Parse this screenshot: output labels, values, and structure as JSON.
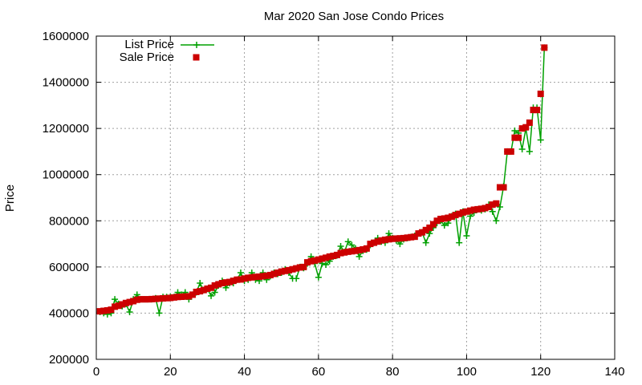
{
  "chart_data": {
    "type": "line",
    "title": "Mar 2020 San Jose Condo Prices",
    "xlabel": "",
    "ylabel": "Price",
    "xlim": [
      0,
      140
    ],
    "ylim": [
      200000,
      1600000
    ],
    "x_ticks": [
      "0",
      "20",
      "40",
      "60",
      "80",
      "100",
      "120",
      "140"
    ],
    "y_ticks": [
      "200000",
      "400000",
      "600000",
      "800000",
      "1000000",
      "1200000",
      "1400000",
      "1600000"
    ],
    "grid": true,
    "legend_position": "top-left",
    "colors": {
      "list": "#00a000",
      "sale": "#cc0000"
    },
    "x": [
      1,
      2,
      3,
      4,
      5,
      6,
      7,
      8,
      9,
      10,
      11,
      12,
      13,
      14,
      15,
      16,
      17,
      18,
      19,
      20,
      21,
      22,
      23,
      24,
      25,
      26,
      27,
      28,
      29,
      30,
      31,
      32,
      33,
      34,
      35,
      36,
      37,
      38,
      39,
      40,
      41,
      42,
      43,
      44,
      45,
      46,
      47,
      48,
      49,
      50,
      51,
      52,
      53,
      54,
      55,
      56,
      57,
      58,
      59,
      60,
      61,
      62,
      63,
      64,
      65,
      66,
      67,
      68,
      69,
      70,
      71,
      72,
      73,
      74,
      75,
      76,
      77,
      78,
      79,
      80,
      81,
      82,
      83,
      84,
      85,
      86,
      87,
      88,
      89,
      90,
      91,
      92,
      93,
      94,
      95,
      96,
      97,
      98,
      99,
      100,
      101,
      102,
      103,
      104,
      105,
      106,
      107,
      108,
      109,
      110,
      111,
      112,
      113,
      114,
      115,
      116,
      117,
      118,
      119,
      120,
      121
    ],
    "series": [
      {
        "name": "List Price",
        "style": "line-plus",
        "values": [
          405000,
          400000,
          395000,
          400000,
          460000,
          440000,
          430000,
          440000,
          405000,
          460000,
          480000,
          460000,
          460000,
          460000,
          460000,
          465000,
          400000,
          470000,
          470000,
          470000,
          470000,
          490000,
          480000,
          490000,
          460000,
          480000,
          490000,
          530000,
          500000,
          505000,
          475000,
          490000,
          520000,
          540000,
          510000,
          530000,
          530000,
          545000,
          575000,
          540000,
          545000,
          575000,
          545000,
          540000,
          575000,
          545000,
          560000,
          575000,
          570000,
          575000,
          590000,
          575000,
          550000,
          550000,
          600000,
          595000,
          615000,
          645000,
          615000,
          555000,
          615000,
          610000,
          625000,
          645000,
          650000,
          690000,
          665000,
          710000,
          695000,
          680000,
          645000,
          670000,
          675000,
          695000,
          705000,
          725000,
          710000,
          705000,
          745000,
          725000,
          715000,
          700000,
          720000,
          725000,
          730000,
          735000,
          745000,
          750000,
          705000,
          745000,
          770000,
          790000,
          800000,
          780000,
          790000,
          820000,
          830000,
          705000,
          840000,
          735000,
          820000,
          835000,
          850000,
          845000,
          850000,
          870000,
          840000,
          800000,
          860000,
          950000,
          1100000,
          1100000,
          1190000,
          1180000,
          1110000,
          1200000,
          1100000,
          1290000,
          1290000,
          1150000,
          1550000
        ]
      },
      {
        "name": "Sale Price",
        "style": "square",
        "values": [
          408000,
          410000,
          412000,
          415000,
          428000,
          432000,
          438000,
          444000,
          448000,
          452000,
          458000,
          460000,
          460000,
          460000,
          461000,
          462000,
          463000,
          464000,
          465000,
          466000,
          468000,
          470000,
          471000,
          472000,
          473000,
          480000,
          492000,
          495000,
          500000,
          506000,
          510000,
          520000,
          525000,
          530000,
          533000,
          535000,
          540000,
          545000,
          546000,
          550000,
          553000,
          555000,
          557000,
          558000,
          560000,
          562000,
          565000,
          570000,
          575000,
          580000,
          583000,
          586000,
          590000,
          594000,
          598000,
          600000,
          620000,
          625000,
          628000,
          632000,
          636000,
          640000,
          645000,
          648000,
          652000,
          660000,
          663000,
          666000,
          668000,
          670000,
          673000,
          676000,
          680000,
          700000,
          705000,
          710000,
          715000,
          718000,
          720000,
          722000,
          723000,
          724000,
          725000,
          727000,
          729000,
          731000,
          745000,
          750000,
          760000,
          770000,
          785000,
          800000,
          808000,
          810000,
          813000,
          818000,
          825000,
          830000,
          836000,
          840000,
          844000,
          848000,
          850000,
          852000,
          855000,
          860000,
          870000,
          875000,
          945000,
          945000,
          1100000,
          1100000,
          1160000,
          1160000,
          1200000,
          1205000,
          1225000,
          1280000,
          1280000,
          1350000,
          1550000
        ]
      }
    ]
  }
}
